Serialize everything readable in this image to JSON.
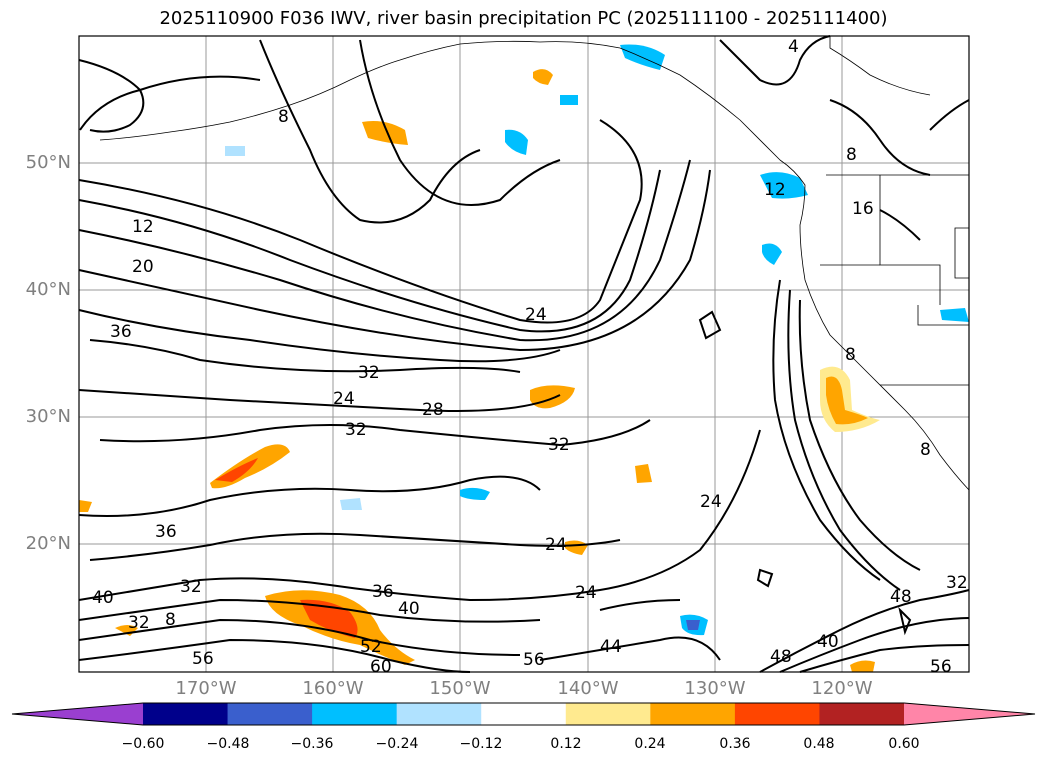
{
  "title": "2025110900 F036 IWV, river basin precipitation PC (2025111100 - 2025111400)",
  "map": {
    "lat_labels": [
      "50°N",
      "40°N",
      "30°N",
      "20°N"
    ],
    "lon_labels": [
      "170°W",
      "160°W",
      "150°W",
      "140°W",
      "130°W",
      "120°W"
    ],
    "contour_labels": [
      "8",
      "12",
      "20",
      "36",
      "24",
      "32",
      "24",
      "28",
      "32",
      "32",
      "24",
      "36",
      "24",
      "40",
      "32",
      "32",
      "8",
      "56",
      "36",
      "40",
      "52",
      "60",
      "24",
      "44",
      "56",
      "48",
      "40",
      "48",
      "56",
      "32",
      "16",
      "8",
      "8",
      "4",
      "8",
      "12"
    ]
  },
  "colorbar": {
    "colors": [
      "#9a3fd0",
      "#00008b",
      "#3a5fcd",
      "#00bfff",
      "#b0e2ff",
      "#ffffff",
      "#ffea8f",
      "#ffa500",
      "#ff4500",
      "#b22222",
      "#ff85a8"
    ],
    "ticks": [
      "−0.60",
      "−0.48",
      "−0.36",
      "−0.24",
      "−0.12",
      "0.12",
      "0.24",
      "0.36",
      "0.48",
      "0.60"
    ]
  }
}
